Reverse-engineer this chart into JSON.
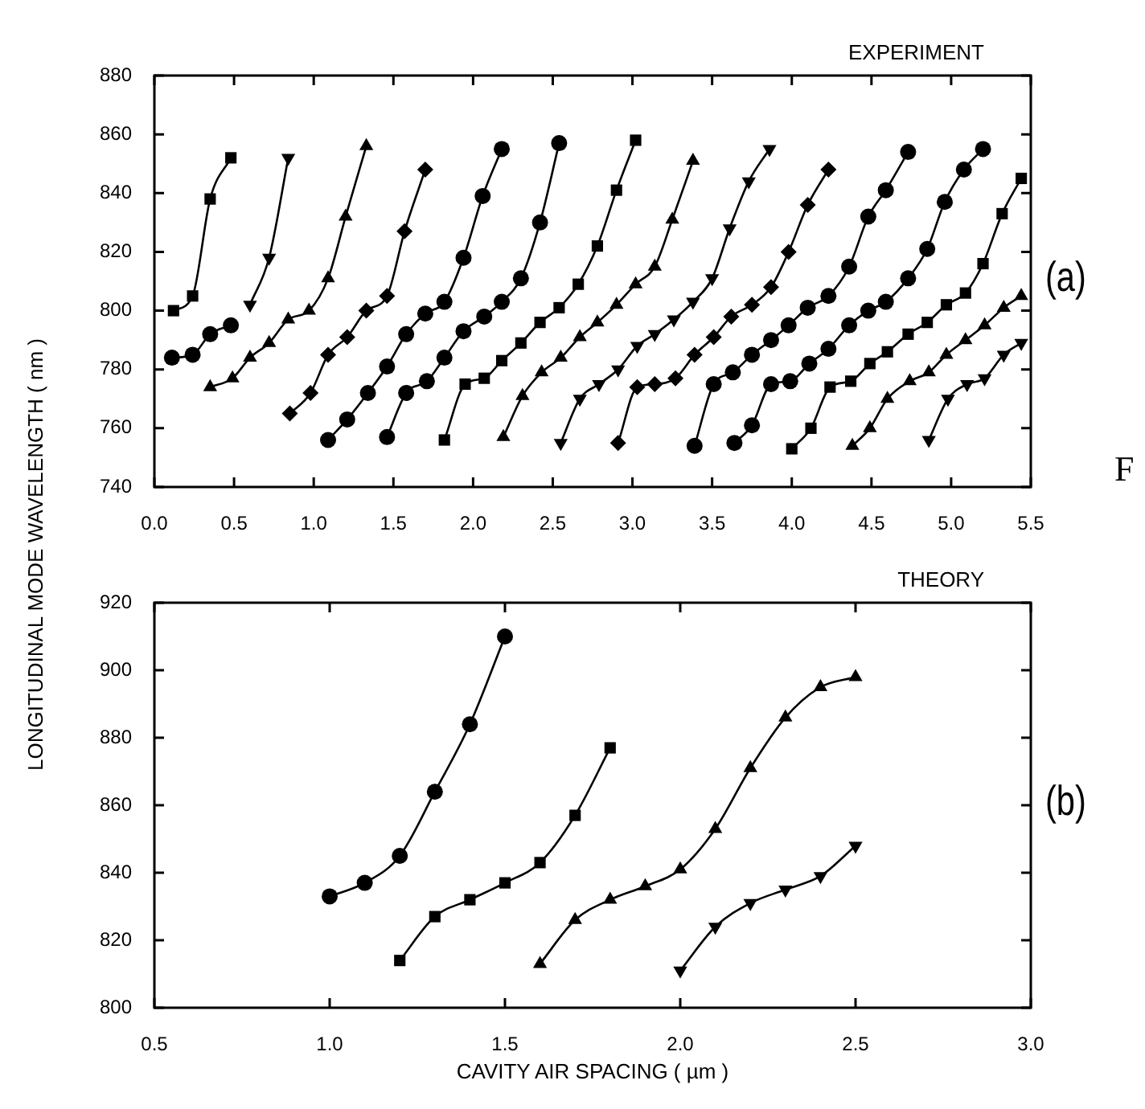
{
  "chart_data": [
    {
      "type": "line",
      "title": "EXPERIMENT",
      "ylabel": "LONGITUDINAL MODE WAVELENGTH ( nm )",
      "annotations": [
        "(a)",
        "F"
      ],
      "xlim": [
        0,
        5.5
      ],
      "xticks": [
        {
          "value": 0,
          "label": "0.0"
        },
        0.5,
        {
          "value": 1,
          "label": "1.0"
        },
        1.5,
        {
          "value": 2,
          "label": "2.0"
        },
        2.5,
        {
          "value": 3,
          "label": "3.0"
        },
        3.5,
        {
          "value": 4,
          "label": "4.0"
        },
        4.5,
        {
          "value": 5,
          "label": "5.0"
        },
        5.5
      ],
      "ylim": [
        740,
        880
      ],
      "yticks": [
        740,
        760,
        780,
        800,
        820,
        840,
        860,
        880
      ],
      "series": [
        {
          "color": "#000000",
          "marker": "square",
          "x": [
            0.12,
            0.24,
            0.35,
            0.48
          ],
          "values": [
            800,
            805,
            838,
            852
          ]
        },
        {
          "color": "#000000",
          "marker": "circle",
          "x": [
            0.11,
            0.24,
            0.35,
            0.48
          ],
          "values": [
            784,
            785,
            792,
            795
          ]
        },
        {
          "color": "#000000",
          "marker": "triangle-down",
          "x": [
            0.6,
            0.72,
            0.84
          ],
          "values": [
            802,
            818,
            852
          ]
        },
        {
          "color": "#000000",
          "marker": "triangle",
          "x": [
            0.35,
            0.49,
            0.6,
            0.72,
            0.84,
            0.97,
            1.09,
            1.2,
            1.33
          ],
          "values": [
            774,
            777,
            784,
            789,
            797,
            800,
            811,
            832,
            856
          ]
        },
        {
          "color": "#000000",
          "marker": "diamond",
          "x": [
            0.85,
            0.98,
            1.09,
            1.21,
            1.33,
            1.46,
            1.57,
            1.7
          ],
          "values": [
            765,
            772,
            785,
            791,
            800,
            805,
            827,
            848
          ]
        },
        {
          "color": "#000000",
          "marker": "circle",
          "x": [
            1.09,
            1.21,
            1.34,
            1.46,
            1.58,
            1.7,
            1.82,
            1.94,
            2.06,
            2.18
          ],
          "values": [
            756,
            763,
            772,
            781,
            792,
            799,
            803,
            818,
            839,
            855
          ]
        },
        {
          "color": "#000000",
          "marker": "circle",
          "x": [
            1.46,
            1.58,
            1.71,
            1.82,
            1.94,
            2.07,
            2.18,
            2.3,
            2.42,
            2.54
          ],
          "values": [
            757,
            772,
            776,
            784,
            793,
            798,
            803,
            811,
            830,
            857
          ]
        },
        {
          "color": "#000000",
          "marker": "square",
          "x": [
            1.82,
            1.95,
            2.07,
            2.18,
            2.3,
            2.42,
            2.54,
            2.66,
            2.78,
            2.9,
            3.02
          ],
          "values": [
            756,
            775,
            777,
            783,
            789,
            796,
            801,
            809,
            822,
            841,
            858
          ]
        },
        {
          "color": "#000000",
          "marker": "triangle",
          "x": [
            2.19,
            2.31,
            2.43,
            2.55,
            2.67,
            2.78,
            2.9,
            3.02,
            3.14,
            3.25,
            3.38
          ],
          "values": [
            757,
            771,
            779,
            784,
            791,
            796,
            802,
            809,
            815,
            831,
            851
          ]
        },
        {
          "color": "#000000",
          "marker": "triangle-down",
          "x": [
            2.55,
            2.67,
            2.79,
            2.91,
            3.03,
            3.14,
            3.26,
            3.38,
            3.5,
            3.61,
            3.73,
            3.86
          ],
          "values": [
            755,
            770,
            775,
            780,
            788,
            792,
            797,
            803,
            811,
            828,
            844,
            855
          ]
        },
        {
          "color": "#000000",
          "marker": "diamond",
          "x": [
            2.91,
            3.03,
            3.14,
            3.27,
            3.39,
            3.51,
            3.62,
            3.75,
            3.87,
            3.98,
            4.1,
            4.23
          ],
          "values": [
            755,
            774,
            775,
            777,
            785,
            791,
            798,
            802,
            808,
            820,
            836,
            848
          ]
        },
        {
          "color": "#000000",
          "marker": "circle",
          "x": [
            3.39,
            3.51,
            3.63,
            3.75,
            3.87,
            3.98,
            4.1,
            4.23,
            4.36,
            4.48,
            4.59,
            4.73
          ],
          "values": [
            754,
            775,
            779,
            785,
            790,
            795,
            801,
            805,
            815,
            832,
            841,
            854
          ]
        },
        {
          "color": "#000000",
          "marker": "circle",
          "x": [
            3.64,
            3.75,
            3.87,
            3.99,
            4.11,
            4.23,
            4.36,
            4.48,
            4.59,
            4.73,
            4.85,
            4.96,
            5.08,
            5.2
          ],
          "values": [
            755,
            761,
            775,
            776,
            782,
            787,
            795,
            800,
            803,
            811,
            821,
            837,
            848,
            855
          ]
        },
        {
          "color": "#000000",
          "marker": "square",
          "x": [
            4.0,
            4.12,
            4.24,
            4.37,
            4.49,
            4.6,
            4.73,
            4.85,
            4.97,
            5.09,
            5.2,
            5.32,
            5.44
          ],
          "values": [
            753,
            760,
            774,
            776,
            782,
            786,
            792,
            796,
            802,
            806,
            816,
            833,
            845
          ]
        },
        {
          "color": "#000000",
          "marker": "triangle",
          "x": [
            4.38,
            4.49,
            4.6,
            4.74,
            4.86,
            4.97,
            5.09,
            5.21,
            5.33,
            5.44
          ],
          "values": [
            754,
            760,
            770,
            776,
            779,
            785,
            790,
            795,
            801,
            805
          ]
        },
        {
          "color": "#000000",
          "marker": "triangle-down",
          "x": [
            4.86,
            4.98,
            5.1,
            5.21,
            5.33,
            5.44
          ],
          "values": [
            756,
            770,
            775,
            777,
            785,
            789
          ]
        }
      ]
    },
    {
      "type": "line",
      "title": "THEORY",
      "xlabel": "CAVITY AIR SPACING ( µm )",
      "annotations": [
        "(b)"
      ],
      "xlim": [
        0.5,
        3
      ],
      "xticks": [
        0.5,
        {
          "value": 1,
          "label": "1.0"
        },
        1.5,
        {
          "value": 2,
          "label": "2.0"
        },
        2.5,
        {
          "value": 3,
          "label": "3.0"
        }
      ],
      "ylim": [
        800,
        920
      ],
      "yticks": [
        800,
        820,
        840,
        860,
        880,
        900,
        920
      ],
      "series": [
        {
          "color": "#000000",
          "marker": "circle",
          "x": [
            1.0,
            1.1,
            1.2,
            1.3,
            1.4,
            1.5
          ],
          "values": [
            833,
            837,
            845,
            864,
            884,
            910
          ]
        },
        {
          "color": "#000000",
          "marker": "square",
          "x": [
            1.2,
            1.3,
            1.4,
            1.5,
            1.6,
            1.7,
            1.8
          ],
          "values": [
            814,
            827,
            832,
            837,
            843,
            857,
            877
          ]
        },
        {
          "color": "#000000",
          "marker": "triangle",
          "x": [
            1.6,
            1.7,
            1.8,
            1.9,
            2.0,
            2.1,
            2.2,
            2.3,
            2.4,
            2.5
          ],
          "values": [
            813,
            826,
            832,
            836,
            841,
            853,
            871,
            886,
            895,
            898
          ]
        },
        {
          "color": "#000000",
          "marker": "triangle-down",
          "x": [
            2.0,
            2.1,
            2.2,
            2.3,
            2.4,
            2.5
          ],
          "values": [
            811,
            824,
            831,
            835,
            839,
            848
          ]
        }
      ]
    }
  ]
}
